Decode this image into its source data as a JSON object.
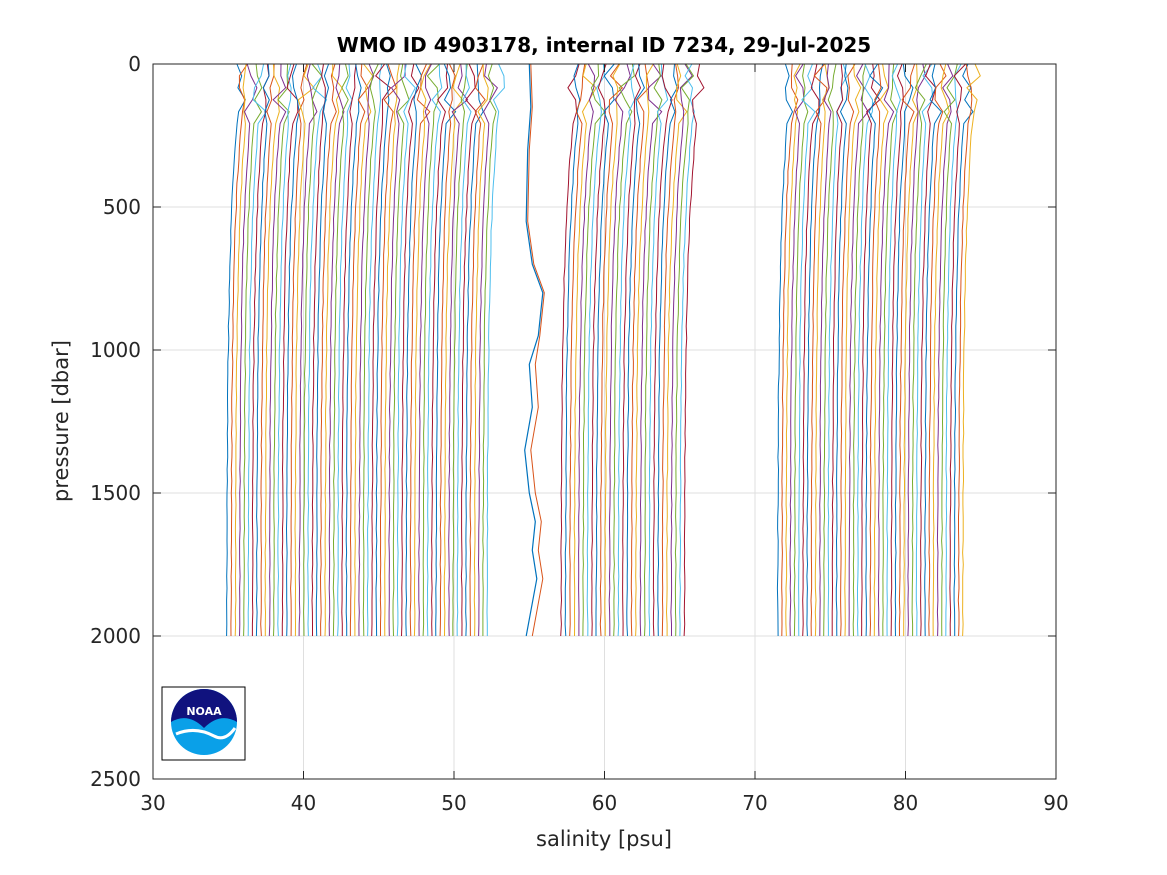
{
  "chart_data": {
    "type": "line",
    "title": "WMO ID 4903178, internal ID 7234, 29-Jul-2025",
    "xlabel": "salinity [psu]",
    "ylabel": "pressure [dbar]",
    "xlim": [
      30,
      90
    ],
    "ylim": [
      0,
      2500
    ],
    "y_reversed": true,
    "grid": true,
    "xticks": [
      "30",
      "40",
      "50",
      "60",
      "70",
      "80",
      "90"
    ],
    "yticks": [
      "0",
      "500",
      "1000",
      "1500",
      "2000",
      "2500"
    ],
    "xtick_values": [
      30,
      40,
      50,
      60,
      70,
      80,
      90
    ],
    "ytick_values": [
      0,
      500,
      1000,
      1500,
      2000,
      2500
    ],
    "profile_max_pressure": 2000,
    "series_groups": [
      {
        "group": "A",
        "deep_start": 34.9,
        "deep_end": 52.2,
        "count": 62,
        "surface_offset": 0.75
      },
      {
        "group": "B",
        "deep_start": 57.1,
        "deep_end": 65.3,
        "count": 29,
        "surface_offset": 0.9
      },
      {
        "group": "C",
        "deep_start": 71.5,
        "deep_end": 83.8,
        "count": 45,
        "surface_offset": 0.7
      }
    ],
    "anomalous_profile": {
      "points": [
        [
          55.0,
          0
        ],
        [
          55.1,
          150
        ],
        [
          54.9,
          300
        ],
        [
          54.8,
          550
        ],
        [
          55.2,
          700
        ],
        [
          55.9,
          800
        ],
        [
          55.6,
          950
        ],
        [
          55.0,
          1050
        ],
        [
          55.2,
          1200
        ],
        [
          54.7,
          1350
        ],
        [
          55.0,
          1500
        ],
        [
          55.4,
          1600
        ],
        [
          55.2,
          1700
        ],
        [
          55.5,
          1800
        ],
        [
          54.8,
          2000
        ]
      ]
    },
    "colors": [
      "#0072BD",
      "#D95319",
      "#EDB120",
      "#7E2F8E",
      "#77AC30",
      "#4DBEEE",
      "#A2142F"
    ]
  },
  "logo": {
    "text": "NOAA"
  }
}
